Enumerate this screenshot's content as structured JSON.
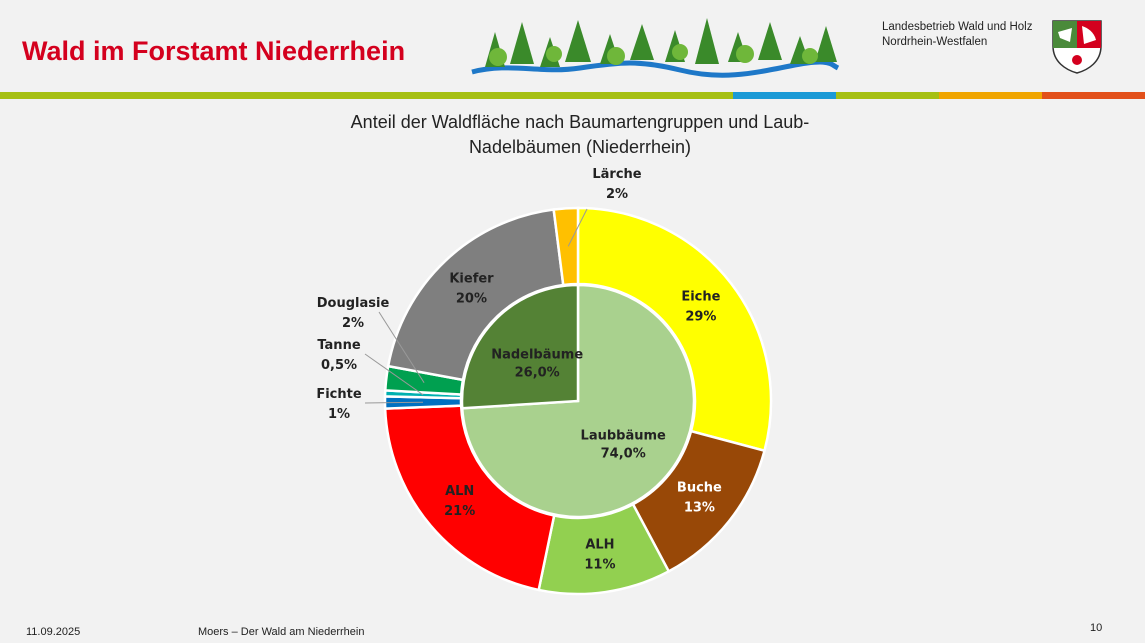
{
  "header": {
    "title": "Wald im Forstamt Niederrhein",
    "org_line1": "Landesbetrieb Wald und Holz",
    "org_line2": "Nordrhein-Westfalen"
  },
  "stripes": [
    {
      "color": "#a6c013",
      "share": 0.64
    },
    {
      "color": "#1a9ad6",
      "share": 0.09
    },
    {
      "color": "#a6c013",
      "share": 0.09
    },
    {
      "color": "#f0a500",
      "share": 0.09
    },
    {
      "color": "#e2501a",
      "share": 0.09
    }
  ],
  "chart_data": {
    "type": "pie",
    "subtype": "doughnut-nested",
    "title_line1": "Anteil der Waldfläche nach Baumartengruppen und Laub-",
    "title_line2": "Nadelbäumen (Niederrhein)",
    "inner": [
      {
        "name": "Laubbäume",
        "label": "74,0%",
        "value": 74.0,
        "color": "#a9d18e"
      },
      {
        "name": "Nadelbäume",
        "label": "26,0%",
        "value": 26.0,
        "color": "#548235"
      }
    ],
    "outer": [
      {
        "name": "Eiche",
        "label": "29%",
        "value": 29.0,
        "color": "#ffff00"
      },
      {
        "name": "Buche",
        "label": "13%",
        "value": 13.0,
        "color": "#984807"
      },
      {
        "name": "ALH",
        "label": "11%",
        "value": 11.0,
        "color": "#92d050"
      },
      {
        "name": "ALN",
        "label": "21%",
        "value": 21.0,
        "color": "#ff0000"
      },
      {
        "name": "Fichte",
        "label": "1%",
        "value": 1.0,
        "color": "#0070c0"
      },
      {
        "name": "Tanne",
        "label": "0,5%",
        "value": 0.5,
        "color": "#00b0b0"
      },
      {
        "name": "Douglasie",
        "label": "2%",
        "value": 2.0,
        "color": "#00a050"
      },
      {
        "name": "Kiefer",
        "label": "20%",
        "value": 20.0,
        "color": "#7f7f7f"
      },
      {
        "name": "Lärche",
        "label": "2%",
        "value": 2.0,
        "color": "#ffc000"
      }
    ]
  },
  "footer": {
    "date": "11.09.2025",
    "text": "Moers – Der Wald am Niederrhein",
    "page": "10"
  }
}
